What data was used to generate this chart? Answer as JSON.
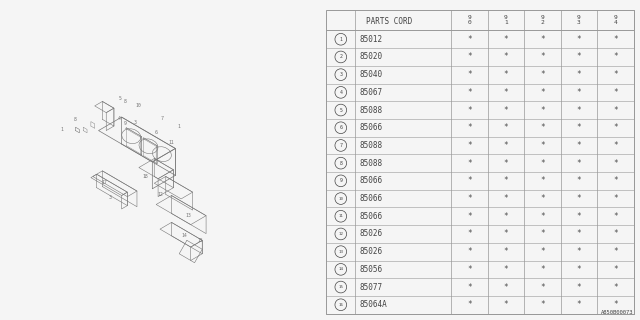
{
  "bg_color": "#f5f5f5",
  "watermark": "A850B00073",
  "font_color": "#444444",
  "line_color": "#999999",
  "diagram_color": "#777777",
  "col_header": "PARTS CORD",
  "year_cols": [
    "9\n0",
    "9\n1",
    "9\n2",
    "9\n3",
    "9\n4"
  ],
  "rows": [
    {
      "num": 1,
      "part": "85012"
    },
    {
      "num": 2,
      "part": "85020"
    },
    {
      "num": 3,
      "part": "85040"
    },
    {
      "num": 4,
      "part": "85067"
    },
    {
      "num": 5,
      "part": "85088"
    },
    {
      "num": 6,
      "part": "85066"
    },
    {
      "num": 7,
      "part": "85088"
    },
    {
      "num": 8,
      "part": "85088"
    },
    {
      "num": 9,
      "part": "85066"
    },
    {
      "num": 10,
      "part": "85066"
    },
    {
      "num": 11,
      "part": "85066"
    },
    {
      "num": 12,
      "part": "85026"
    },
    {
      "num": 13,
      "part": "85026"
    },
    {
      "num": 14,
      "part": "85056"
    },
    {
      "num": 15,
      "part": "85077"
    },
    {
      "num": 16,
      "part": "85064A"
    }
  ]
}
